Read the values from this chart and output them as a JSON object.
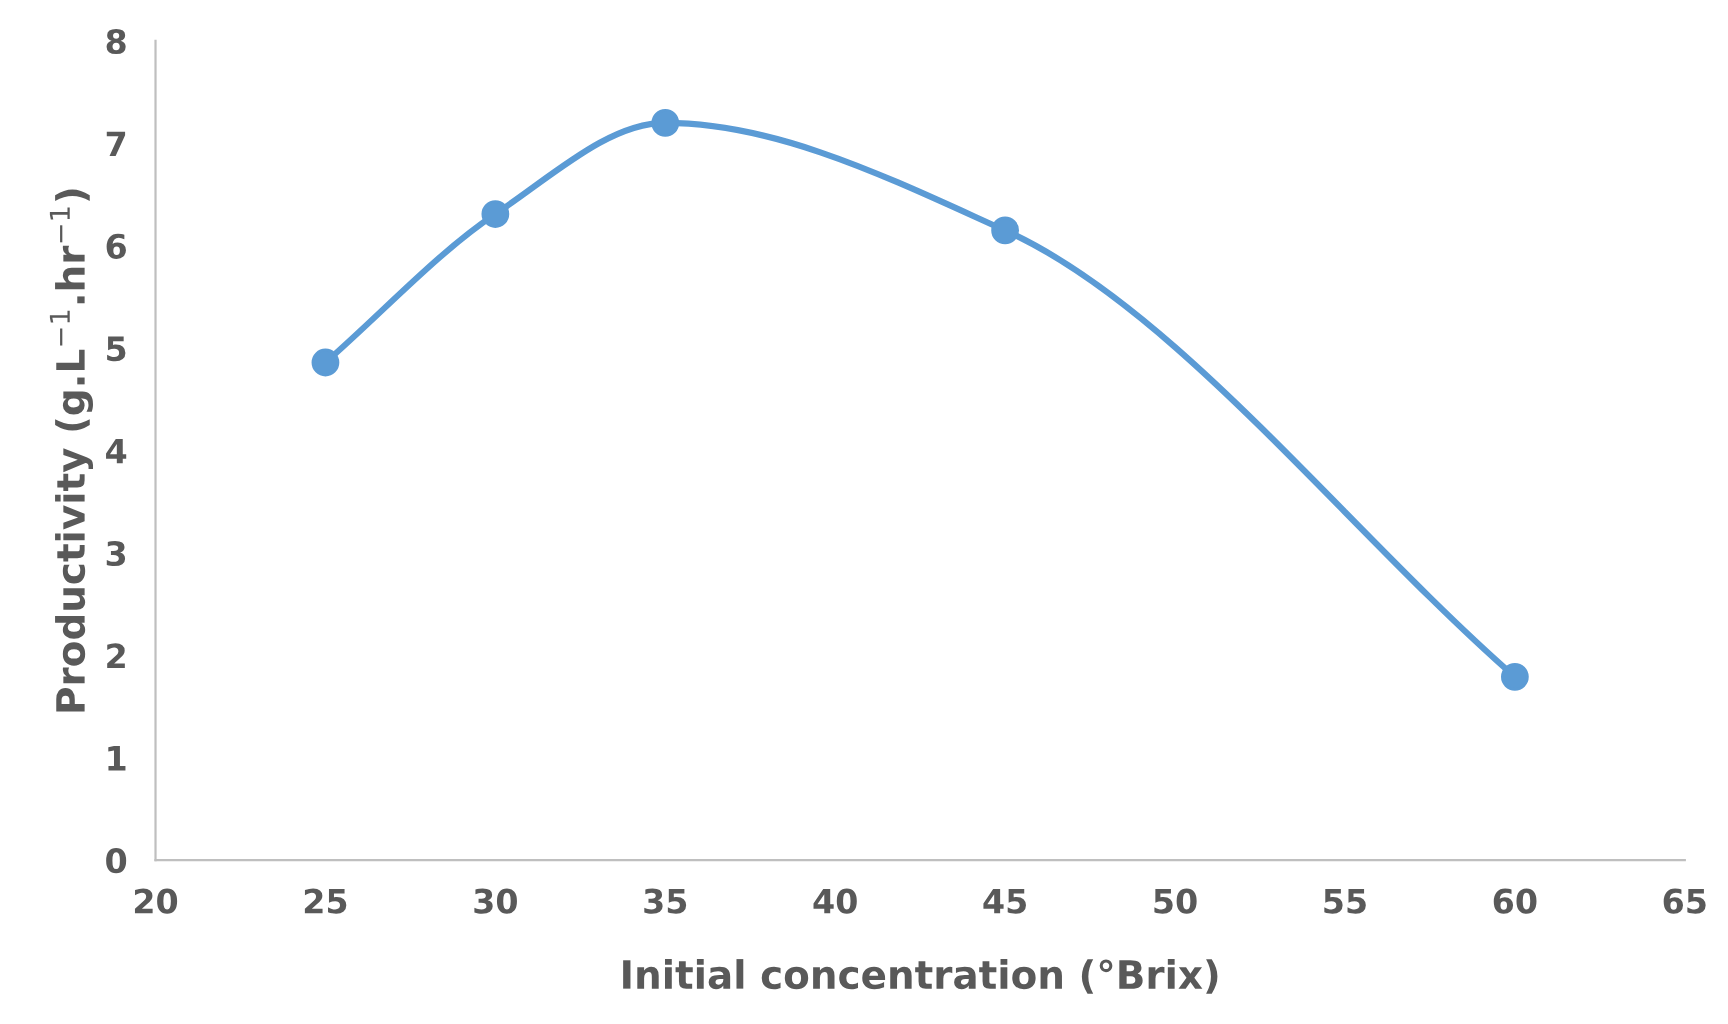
{
  "chart_data": {
    "type": "line",
    "xlabel": "Initial concentration (°Brix)",
    "ylabel": "Productivity (g.L$^{−1}$.hr$^{−1}$)",
    "x": [
      25,
      30,
      35,
      45,
      60
    ],
    "series": [
      {
        "color": "#5b9bd5",
        "values": [
          4.86,
          6.31,
          7.2,
          6.15,
          1.79
        ]
      }
    ],
    "xlim": [
      20,
      65
    ],
    "xticks": [
      20,
      25,
      30,
      35,
      40,
      45,
      50,
      55,
      60,
      65
    ],
    "ylim": [
      0,
      8
    ],
    "yticks": [
      0,
      1,
      2,
      3,
      4,
      5,
      6,
      7,
      8
    ],
    "grid": false,
    "legend": false,
    "marker": "circle",
    "line_style": "solid"
  }
}
